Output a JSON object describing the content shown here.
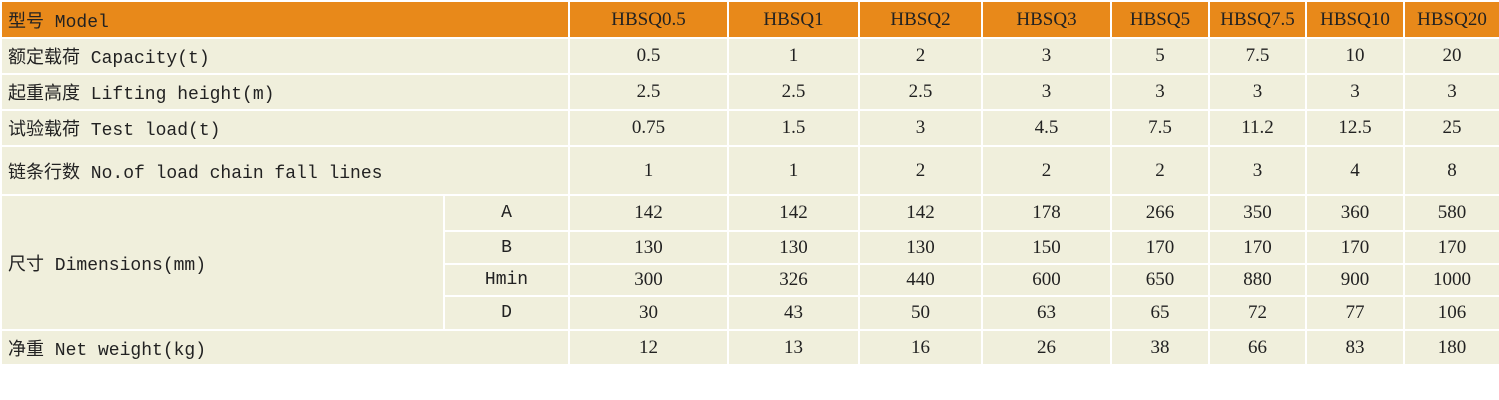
{
  "header": {
    "label": "型号 Model",
    "models": [
      "HBSQ0.5",
      "HBSQ1",
      "HBSQ2",
      "HBSQ3",
      "HBSQ5",
      "HBSQ7.5",
      "HBSQ10",
      "HBSQ20"
    ]
  },
  "rows": [
    {
      "label": "额定载荷 Capacity(t)",
      "values": [
        "0.5",
        "1",
        "2",
        "3",
        "5",
        "7.5",
        "10",
        "20"
      ]
    },
    {
      "label": "起重高度 Lifting height(m)",
      "values": [
        "2.5",
        "2.5",
        "2.5",
        "3",
        "3",
        "3",
        "3",
        "3"
      ]
    },
    {
      "label": "试验载荷 Test load(t)",
      "values": [
        "0.75",
        "1.5",
        "3",
        "4.5",
        "7.5",
        "11.2",
        "12.5",
        "25"
      ]
    },
    {
      "label": "链条行数 No.of load chain fall lines",
      "values": [
        "1",
        "1",
        "2",
        "2",
        "2",
        "3",
        "4",
        "8"
      ]
    }
  ],
  "dimensions": {
    "label": "尺寸 Dimensions(mm)",
    "rows": [
      {
        "sub": "A",
        "values": [
          "142",
          "142",
          "142",
          "178",
          "266",
          "350",
          "360",
          "580"
        ]
      },
      {
        "sub": "B",
        "values": [
          "130",
          "130",
          "130",
          "150",
          "170",
          "170",
          "170",
          "170"
        ]
      },
      {
        "sub": "Hmin",
        "values": [
          "300",
          "326",
          "440",
          "600",
          "650",
          "880",
          "900",
          "1000"
        ]
      },
      {
        "sub": "D",
        "values": [
          "30",
          "43",
          "50",
          "63",
          "65",
          "72",
          "77",
          "106"
        ]
      }
    ]
  },
  "net_weight": {
    "label": "净重 Net weight(kg)",
    "values": [
      "12",
      "13",
      "16",
      "26",
      "38",
      "66",
      "83",
      "180"
    ]
  }
}
